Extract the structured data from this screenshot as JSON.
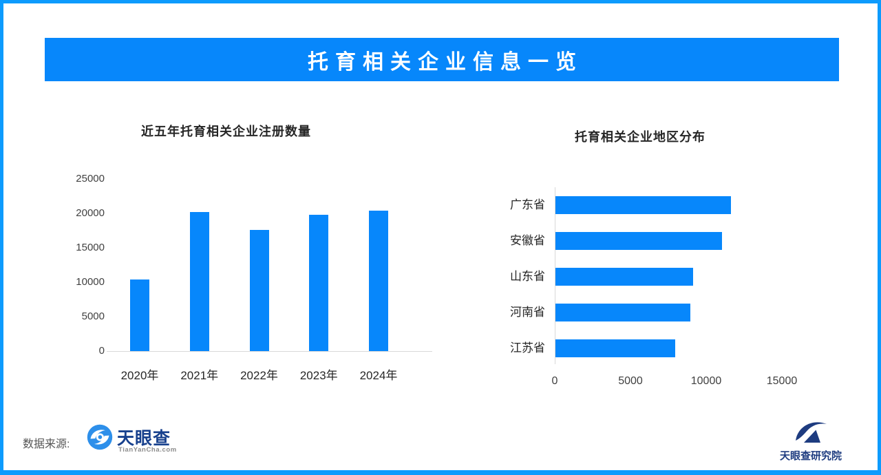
{
  "banner": {
    "title": "托育相关企业信息一览"
  },
  "chart_data": [
    {
      "type": "bar",
      "orientation": "vertical",
      "title": "近五年托育相关企业注册数量",
      "categories": [
        "2020年",
        "2021年",
        "2022年",
        "2023年",
        "2024年"
      ],
      "values": [
        10400,
        20200,
        17600,
        19800,
        20400
      ],
      "xlabel": "",
      "ylabel": "",
      "ylim": [
        0,
        25000
      ],
      "yticks": [
        0,
        5000,
        10000,
        15000,
        20000,
        25000
      ],
      "grid": false,
      "legend": "none",
      "bar_color": "#0787FB"
    },
    {
      "type": "bar",
      "orientation": "horizontal",
      "title": "托育相关企业地区分布",
      "categories": [
        "广东省",
        "安徽省",
        "山东省",
        "河南省",
        "江苏省"
      ],
      "values": [
        11600,
        11000,
        9100,
        8900,
        7900
      ],
      "xlabel": "",
      "ylabel": "",
      "xlim": [
        0,
        15000
      ],
      "xticks": [
        0,
        5000,
        10000,
        15000
      ],
      "grid": false,
      "legend": "none",
      "bar_color": "#0787FB"
    }
  ],
  "footer": {
    "source_label": "数据来源:",
    "brand_name": "天眼查",
    "brand_domain": "TianYanCha.com",
    "institute_name": "天眼查研究院"
  },
  "colors": {
    "accent_blue": "#0787FB",
    "border_blue": "#0D9BFD",
    "brand_navy": "#17408D",
    "institute_navy": "#1E3C80",
    "eye_icon_blue": "#2D8FEA",
    "axis_line_gray": "#D8D8D8",
    "title_text": "#262626",
    "tick_text": "#404040",
    "source_text": "#555555",
    "domain_text": "#8C8C8C"
  }
}
